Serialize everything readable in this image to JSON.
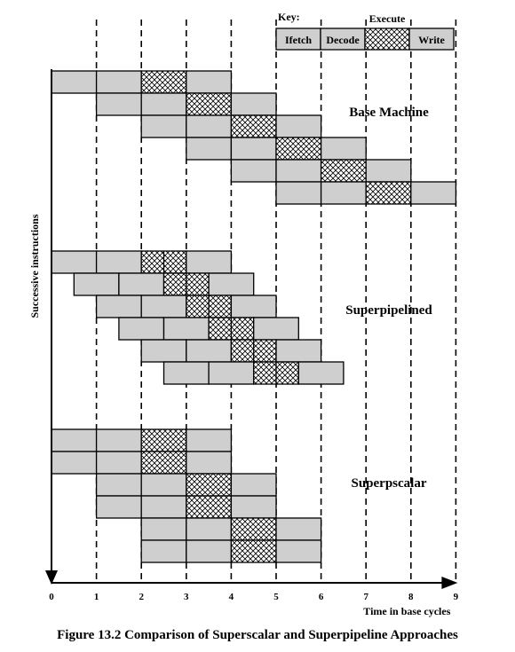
{
  "key": {
    "title": "Key:",
    "execute_label": "Execute",
    "stages": [
      "Ifetch",
      "Decode",
      "Execute",
      "Write"
    ]
  },
  "axes": {
    "y_label": "Successive instructions",
    "x_label": "Time in base cycles",
    "ticks": [
      "0",
      "1",
      "2",
      "3",
      "4",
      "5",
      "6",
      "7",
      "8",
      "9"
    ]
  },
  "sections": [
    {
      "label": "Base Machine",
      "stage_duration": 1,
      "instructions": [
        {
          "start": 0
        },
        {
          "start": 1
        },
        {
          "start": 2
        },
        {
          "start": 3
        },
        {
          "start": 4
        },
        {
          "start": 5
        }
      ]
    },
    {
      "label": "Superpipelined",
      "stage_duration": 1,
      "execute_split": true,
      "instructions": [
        {
          "start": 0
        },
        {
          "start": 0.5
        },
        {
          "start": 1
        },
        {
          "start": 1.5
        },
        {
          "start": 2
        },
        {
          "start": 2.5
        }
      ]
    },
    {
      "label": "Superpscalar",
      "stage_duration": 1,
      "instructions": [
        {
          "start": 0
        },
        {
          "start": 0
        },
        {
          "start": 1
        },
        {
          "start": 1
        },
        {
          "start": 2
        },
        {
          "start": 2
        }
      ]
    }
  ],
  "caption": "Figure 13.2 Comparison of Superscalar and Superpipeline Approaches"
}
